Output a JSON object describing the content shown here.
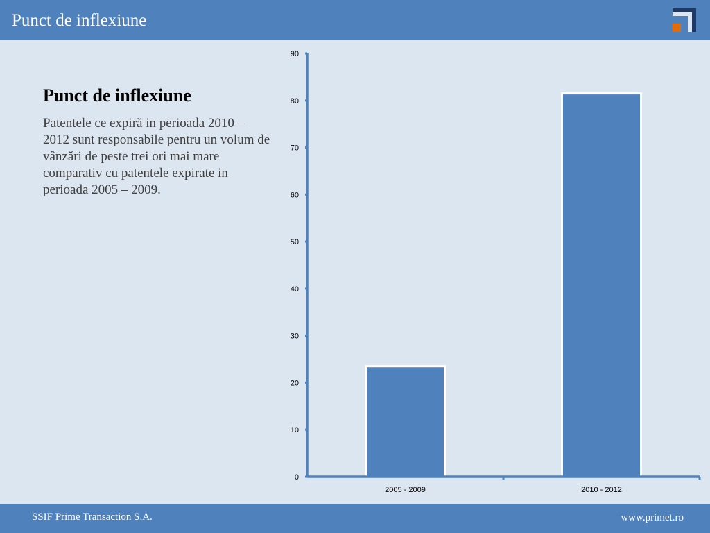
{
  "header": {
    "title": "Punct de inflexiune",
    "logo_icon": "primet-logo-icon"
  },
  "content": {
    "heading": "Punct de inflexiune",
    "paragraph": "Patentele ce expiră in perioada 2010 – 2012 sunt responsabile pentru un volum de vânzări de peste trei ori mai mare comparativ cu patentele expirate in perioada 2005 – 2009."
  },
  "chart_data": {
    "type": "bar",
    "categories": [
      "2005 - 2009",
      "2010 - 2012"
    ],
    "values": [
      23.5,
      81.5
    ],
    "ylim": [
      0,
      90
    ],
    "yticks": [
      0,
      10,
      20,
      30,
      40,
      50,
      60,
      70,
      80,
      90
    ],
    "grid": false,
    "legend": "none",
    "colors": {
      "bar": "#4f81bd",
      "bar_outline": "#ffffff",
      "axis": "#4f81bd"
    }
  },
  "footer": {
    "company": "SSIF Prime Transaction S.A.",
    "website": "www.primet.ro"
  },
  "colors": {
    "accent": "#4f81bd",
    "background": "#dce6f0",
    "logo_dark": "#1f3864",
    "logo_orange": "#e36c0a"
  }
}
